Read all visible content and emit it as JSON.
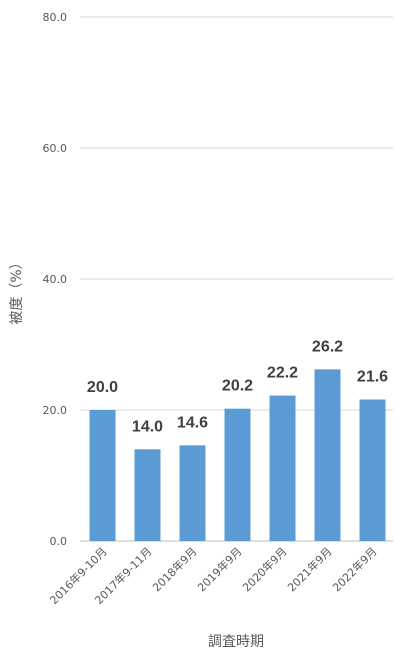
{
  "chart_data": {
    "type": "bar",
    "categories": [
      "2016年9-10月",
      "2017年9-11月",
      "2018年9月",
      "2019年9月",
      "2020年9月",
      "2021年9月",
      "2022年9月"
    ],
    "values": [
      20.0,
      14.0,
      14.6,
      20.2,
      22.2,
      26.2,
      21.6
    ],
    "value_labels": [
      "20.0",
      "14.0",
      "14.6",
      "20.2",
      "22.2",
      "26.2",
      "21.6"
    ],
    "title": "",
    "xlabel": "調査時期",
    "ylabel": "被度（%）",
    "ylim": [
      0,
      80
    ],
    "yticks": [
      "0.0",
      "20.0",
      "40.0",
      "60.0",
      "80.0"
    ],
    "grid": true,
    "bar_color": "#5b9bd5"
  }
}
